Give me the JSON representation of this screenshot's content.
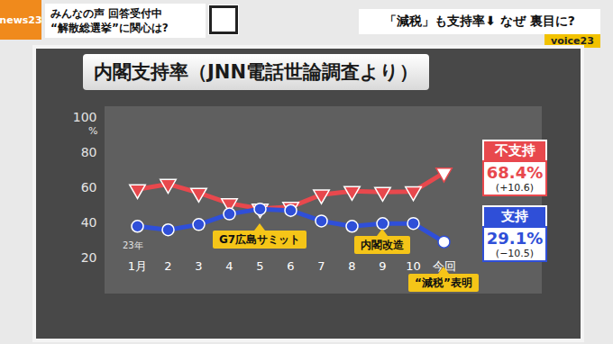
{
  "header": {
    "logo": "news23",
    "notice": [
      "みんなの声 回答受付中",
      "“解散総選挙”に関心は?"
    ],
    "headline": "「減税」も支持率⬇ なぜ 裏目に?",
    "corner": "voice23"
  },
  "chart_data": {
    "type": "line",
    "title": "内閣支持率（JNN電話世論調査より）",
    "xlabel": "23年",
    "ylabel": "%",
    "categories": [
      "1月",
      "2",
      "3",
      "4",
      "5",
      "6",
      "7",
      "8",
      "9",
      "10",
      "今回"
    ],
    "ylim": [
      0,
      106
    ],
    "yticks": [
      20,
      40,
      60,
      80,
      100
    ],
    "grid": false,
    "series": [
      {
        "name": "不支持",
        "color": "#e8484d",
        "marker": "triangle-down",
        "values": [
          59,
          62,
          57,
          51,
          48,
          49,
          56,
          58,
          57.5,
          57.8,
          68.4
        ],
        "value_labels": [
          null,
          null,
          null,
          null,
          null,
          null,
          null,
          null,
          null,
          null,
          "68.4%"
        ],
        "change_label": "(+10.6)"
      },
      {
        "name": "支持",
        "color": "#2f4fd8",
        "marker": "circle",
        "values": [
          38,
          36,
          39,
          45,
          47.8,
          47,
          41,
          38,
          39.5,
          39.6,
          29.1
        ],
        "value_labels": [
          null,
          null,
          null,
          null,
          null,
          null,
          null,
          null,
          null,
          null,
          "29.1%"
        ],
        "change_label": "(−10.5)"
      }
    ],
    "annotations": [
      {
        "text": "G7広島サミット",
        "x": "5"
      },
      {
        "text": "内閣改造",
        "x": "9"
      },
      {
        "text": "“減税”表明",
        "x": "今回"
      }
    ]
  }
}
